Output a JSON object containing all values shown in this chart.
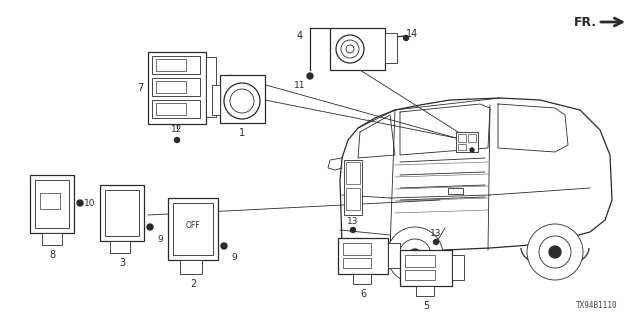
{
  "bg_color": "#ffffff",
  "line_color": "#2a2a2a",
  "fig_width": 6.4,
  "fig_height": 3.2,
  "dpi": 100,
  "watermark": "TX94B1110",
  "fr_label": "FR."
}
